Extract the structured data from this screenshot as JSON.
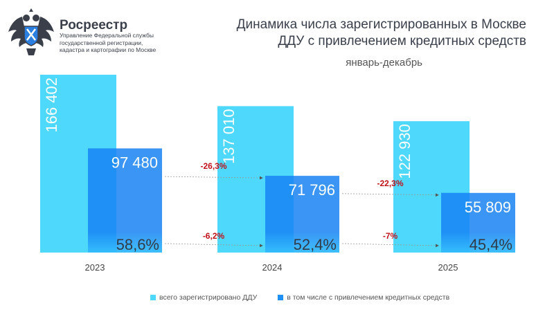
{
  "header": {
    "brand": "Росреестр",
    "org_lines": [
      "Управление Федеральной службы",
      "государственной регистрации,",
      "кадастра и картографии по Москве"
    ],
    "title_lines": [
      "Динамика числа зарегистрированных в Москве",
      "ДДУ с привлечением кредитных средств"
    ],
    "subtitle": "январь-декабрь"
  },
  "colors": {
    "total": "#4dd8fc",
    "credit": "#1e90f6",
    "change": "#c0101a",
    "share_text": "#2f3b47"
  },
  "chart_data": {
    "type": "bar",
    "categories": [
      "2023",
      "2024",
      "2025"
    ],
    "ylim": [
      0,
      180000
    ],
    "series": [
      {
        "name": "всего зарегистрировано ДДУ",
        "values": [
          166402,
          137010,
          122930
        ],
        "labels": [
          "166 402",
          "137 010",
          "122 930"
        ]
      },
      {
        "name": "в том числе с привлечением кредитных средств",
        "values": [
          97480,
          71796,
          55809
        ],
        "labels": [
          "97 480",
          "71 796",
          "55 809"
        ]
      }
    ],
    "credit_share_labels": [
      "58,6%",
      "52,4%",
      "45,4%"
    ],
    "changes": [
      {
        "from": "2023",
        "to": "2024",
        "credit_change": "-26,3%",
        "share_change": "-6,2%"
      },
      {
        "from": "2024",
        "to": "2025",
        "credit_change": "-22,3%",
        "share_change": "-7%"
      }
    ]
  },
  "legend": [
    "всего зарегистрировано ДДУ",
    "в том числе с привлечением кредитных средств"
  ]
}
